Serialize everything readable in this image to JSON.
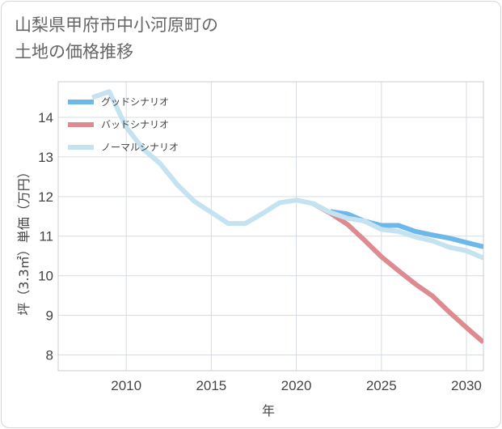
{
  "title": {
    "line1": "山梨県甲府市中小河原町の",
    "line2": "土地の価格推移"
  },
  "chart_data": {
    "type": "line",
    "title": "山梨県甲府市中小河原町の土地の価格推移",
    "xlabel": "年",
    "ylabel": "坪（3.3㎡）単価（万円）",
    "xlim": [
      2006,
      2031
    ],
    "ylim": [
      7.6,
      14.9
    ],
    "x_ticks": [
      2010,
      2015,
      2020,
      2025,
      2030
    ],
    "y_ticks": [
      8,
      9,
      10,
      11,
      12,
      13,
      14
    ],
    "grid": true,
    "legend_position": "top-left",
    "series": [
      {
        "name": "グッドシナリオ",
        "color": "#6cb8ea",
        "points": [
          [
            2022,
            11.62
          ],
          [
            2023,
            11.56
          ],
          [
            2024,
            11.38
          ],
          [
            2025,
            11.27
          ],
          [
            2026,
            11.27
          ],
          [
            2027,
            11.12
          ],
          [
            2028,
            11.03
          ],
          [
            2029,
            10.95
          ],
          [
            2030,
            10.84
          ],
          [
            2031,
            10.73
          ]
        ]
      },
      {
        "name": "バッドシナリオ",
        "color": "#dd8a91",
        "points": [
          [
            2021,
            11.82
          ],
          [
            2022,
            11.58
          ],
          [
            2023,
            11.3
          ],
          [
            2024,
            10.9
          ],
          [
            2025,
            10.48
          ],
          [
            2026,
            10.13
          ],
          [
            2027,
            9.79
          ],
          [
            2028,
            9.49
          ],
          [
            2029,
            9.08
          ],
          [
            2030,
            8.69
          ],
          [
            2031,
            8.32
          ]
        ]
      },
      {
        "name": "ノーマルシナリオ",
        "color": "#c5e2f0",
        "points": [
          [
            2008,
            14.5
          ],
          [
            2009,
            14.65
          ],
          [
            2010,
            13.75
          ],
          [
            2011,
            13.2
          ],
          [
            2012,
            12.83
          ],
          [
            2013,
            12.3
          ],
          [
            2014,
            11.88
          ],
          [
            2015,
            11.6
          ],
          [
            2016,
            11.32
          ],
          [
            2017,
            11.32
          ],
          [
            2018,
            11.57
          ],
          [
            2019,
            11.84
          ],
          [
            2020,
            11.91
          ],
          [
            2021,
            11.82
          ],
          [
            2022,
            11.6
          ],
          [
            2023,
            11.45
          ],
          [
            2024,
            11.38
          ],
          [
            2025,
            11.17
          ],
          [
            2026,
            11.12
          ],
          [
            2027,
            10.98
          ],
          [
            2028,
            10.88
          ],
          [
            2029,
            10.72
          ],
          [
            2030,
            10.63
          ],
          [
            2031,
            10.45
          ]
        ]
      }
    ]
  }
}
